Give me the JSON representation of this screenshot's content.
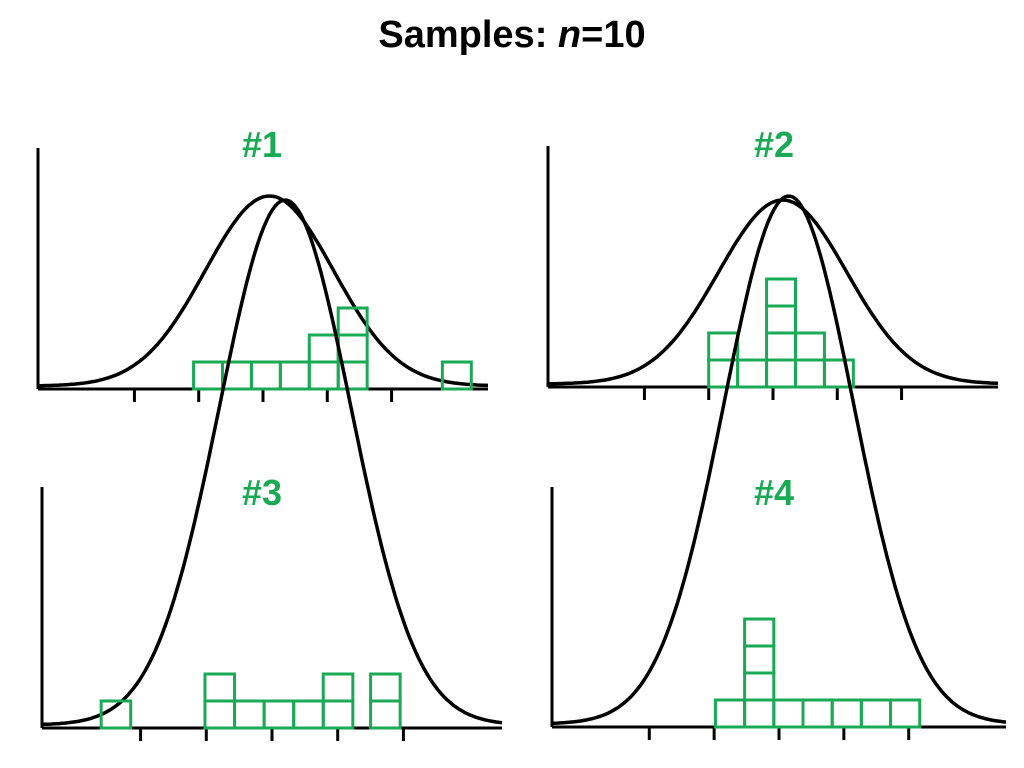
{
  "title": {
    "prefix": "Samples: ",
    "variable": "n",
    "suffix": "=10"
  },
  "colors": {
    "sample": "#1aaa55",
    "curve": "#000000",
    "axis": "#000000",
    "background": "#ffffff"
  },
  "chart_data": [
    {
      "type": "histogram",
      "title": "#1",
      "xlim": [
        -3.5,
        3.5
      ],
      "ticks": [
        -2,
        -1,
        0,
        1,
        2
      ],
      "bin_width": 0.45,
      "curve": "normal",
      "mean": 0.1,
      "bins": [
        {
          "x": -1.08,
          "count": 1
        },
        {
          "x": -0.63,
          "count": 1
        },
        {
          "x": -0.18,
          "count": 1
        },
        {
          "x": 0.27,
          "count": 1
        },
        {
          "x": 0.72,
          "count": 2
        },
        {
          "x": 1.17,
          "count": 3
        },
        {
          "x": 2.79,
          "count": 1
        }
      ],
      "n": 10
    },
    {
      "type": "histogram",
      "title": "#2",
      "xlim": [
        -3.5,
        3.5
      ],
      "ticks": [
        -2,
        -1,
        0,
        1,
        2
      ],
      "bin_width": 0.45,
      "curve": "normal",
      "mean": 0.15,
      "bins": [
        {
          "x": -1.0,
          "count": 2
        },
        {
          "x": -0.55,
          "count": 1
        },
        {
          "x": -0.1,
          "count": 4
        },
        {
          "x": 0.35,
          "count": 2
        },
        {
          "x": 0.8,
          "count": 1
        }
      ],
      "n": 10
    },
    {
      "type": "histogram",
      "title": "#3",
      "xlim": [
        -3.5,
        3.5
      ],
      "ticks": [
        -2,
        -1,
        0,
        1,
        2
      ],
      "bin_width": 0.45,
      "curve": "normal",
      "mean": 0.2,
      "bins": [
        {
          "x": -2.6,
          "count": 1
        },
        {
          "x": -1.02,
          "count": 2
        },
        {
          "x": -0.57,
          "count": 1
        },
        {
          "x": -0.12,
          "count": 1
        },
        {
          "x": 0.33,
          "count": 1
        },
        {
          "x": 0.78,
          "count": 2
        },
        {
          "x": 1.5,
          "count": 2
        }
      ],
      "n": 10
    },
    {
      "type": "histogram",
      "title": "#4",
      "xlim": [
        -3.5,
        3.5
      ],
      "ticks": [
        -2,
        -1,
        0,
        1,
        2
      ],
      "bin_width": 0.45,
      "curve": "normal",
      "mean": 0.15,
      "bins": [
        {
          "x": -0.98,
          "count": 1
        },
        {
          "x": -0.53,
          "count": 4
        },
        {
          "x": -0.08,
          "count": 1
        },
        {
          "x": 0.37,
          "count": 1
        },
        {
          "x": 0.82,
          "count": 1
        },
        {
          "x": 1.27,
          "count": 1
        },
        {
          "x": 1.72,
          "count": 1
        }
      ],
      "n": 10
    }
  ]
}
